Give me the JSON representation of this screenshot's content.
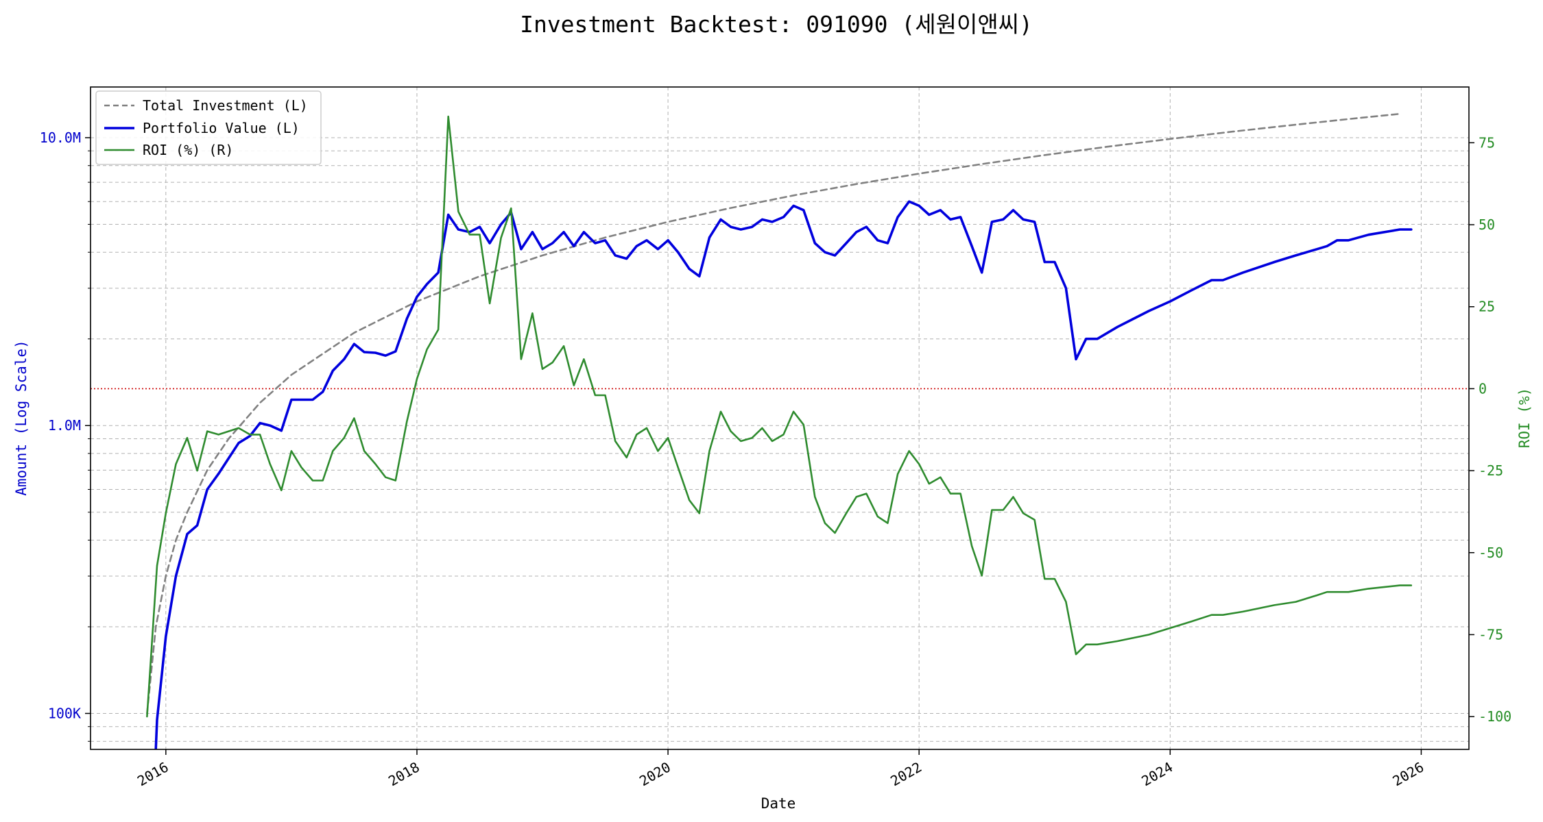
{
  "chart_data": {
    "type": "line",
    "title": "Investment Backtest: 091090 (세원이앤씨)",
    "xlabel": "Date",
    "ylabel_left": "Amount (Log Scale)",
    "ylabel_right": "ROI (%)",
    "x_ticks": [
      "2016",
      "2018",
      "2020",
      "2022",
      "2024",
      "2026"
    ],
    "y_left_ticks": [
      "100K",
      "1.0M",
      "10.0M"
    ],
    "y_left_tick_values": [
      100000,
      1000000,
      10000000
    ],
    "y_right_ticks": [
      "-100",
      "-75",
      "-50",
      "-25",
      "0",
      "25",
      "50",
      "75"
    ],
    "y_right_tick_values": [
      -100,
      -75,
      -50,
      -25,
      0,
      25,
      50,
      75
    ],
    "x_range": [
      2015.4,
      2026.38
    ],
    "y_left_range": [
      75000,
      15000000
    ],
    "y_right_range": [
      -110,
      92
    ],
    "y_left_scale": "log",
    "grid": true,
    "legend_position": "top-left",
    "colors": {
      "total_investment": "#808080",
      "portfolio_value": "#0000dd",
      "roi": "#2e8b2e",
      "zero_line": "#cc0000",
      "left_axis": "#0000cc",
      "right_axis": "#228b22"
    },
    "series": [
      {
        "name": "Total Investment (L)",
        "axis": "left",
        "style": "dashed",
        "x": [
          2015.85,
          2015.92,
          2016.0,
          2016.08,
          2016.17,
          2016.33,
          2016.5,
          2016.75,
          2017.0,
          2017.5,
          2018.0,
          2018.5,
          2019.0,
          2019.5,
          2020.0,
          2020.5,
          2021.0,
          2021.5,
          2022.0,
          2022.5,
          2023.0,
          2023.5,
          2024.0,
          2024.5,
          2025.0,
          2025.5,
          2025.83
        ],
        "values": [
          100000,
          200000,
          300000,
          400000,
          500000,
          700000,
          900000,
          1200000,
          1500000,
          2100000,
          2700000,
          3300000,
          3900000,
          4500000,
          5100000,
          5700000,
          6300000,
          6900000,
          7500000,
          8100000,
          8700000,
          9300000,
          9900000,
          10500000,
          11100000,
          11700000,
          12100000
        ]
      },
      {
        "name": "Portfolio Value (L)",
        "axis": "left",
        "style": "solid",
        "x": [
          2015.92,
          2015.93,
          2016.0,
          2016.08,
          2016.17,
          2016.25,
          2016.33,
          2016.42,
          2016.5,
          2016.58,
          2016.67,
          2016.75,
          2016.83,
          2016.92,
          2017.0,
          2017.08,
          2017.17,
          2017.25,
          2017.33,
          2017.42,
          2017.5,
          2017.58,
          2017.67,
          2017.75,
          2017.83,
          2017.92,
          2018.0,
          2018.08,
          2018.17,
          2018.25,
          2018.33,
          2018.42,
          2018.5,
          2018.58,
          2018.67,
          2018.75,
          2018.83,
          2018.92,
          2019.0,
          2019.08,
          2019.17,
          2019.25,
          2019.33,
          2019.42,
          2019.5,
          2019.58,
          2019.67,
          2019.75,
          2019.83,
          2019.92,
          2020.0,
          2020.08,
          2020.17,
          2020.25,
          2020.33,
          2020.42,
          2020.5,
          2020.58,
          2020.67,
          2020.75,
          2020.83,
          2020.92,
          2021.0,
          2021.08,
          2021.17,
          2021.25,
          2021.33,
          2021.42,
          2021.5,
          2021.58,
          2021.67,
          2021.75,
          2021.83,
          2021.92,
          2022.0,
          2022.08,
          2022.17,
          2022.25,
          2022.33,
          2022.42,
          2022.5,
          2022.58,
          2022.67,
          2022.75,
          2022.83,
          2022.92,
          2023.0,
          2023.08,
          2023.17,
          2023.25,
          2023.33,
          2023.42,
          2023.58,
          2023.83,
          2024.0,
          2024.17,
          2024.33,
          2024.42,
          2024.58,
          2024.83,
          2025.0,
          2025.17,
          2025.25,
          2025.33,
          2025.42,
          2025.58,
          2025.83,
          2025.92
        ],
        "values": [
          75000,
          95000,
          185000,
          300000,
          420000,
          450000,
          600000,
          680000,
          770000,
          870000,
          920000,
          1020000,
          1000000,
          960000,
          1230000,
          1230000,
          1230000,
          1310000,
          1550000,
          1700000,
          1920000,
          1800000,
          1790000,
          1750000,
          1810000,
          2350000,
          2800000,
          3100000,
          3400000,
          5400000,
          4800000,
          4700000,
          4900000,
          4300000,
          5000000,
          5500000,
          4100000,
          4700000,
          4100000,
          4300000,
          4700000,
          4200000,
          4700000,
          4300000,
          4400000,
          3900000,
          3800000,
          4200000,
          4400000,
          4100000,
          4400000,
          4000000,
          3500000,
          3300000,
          4500000,
          5200000,
          4900000,
          4800000,
          4900000,
          5200000,
          5100000,
          5300000,
          5800000,
          5600000,
          4300000,
          4000000,
          3900000,
          4300000,
          4700000,
          4900000,
          4400000,
          4300000,
          5300000,
          6000000,
          5800000,
          5400000,
          5600000,
          5200000,
          5300000,
          4200000,
          3400000,
          5100000,
          5200000,
          5600000,
          5200000,
          5100000,
          3700000,
          3700000,
          3000000,
          1700000,
          2000000,
          2000000,
          2200000,
          2500000,
          2700000,
          2950000,
          3200000,
          3200000,
          3400000,
          3700000,
          3900000,
          4100000,
          4200000,
          4400000,
          4400000,
          4600000,
          4800000,
          4800000
        ]
      },
      {
        "name": "ROI (%) (R)",
        "axis": "right",
        "style": "solid",
        "x": [
          2015.85,
          2015.93,
          2016.0,
          2016.08,
          2016.17,
          2016.25,
          2016.33,
          2016.42,
          2016.5,
          2016.58,
          2016.67,
          2016.75,
          2016.83,
          2016.92,
          2017.0,
          2017.08,
          2017.17,
          2017.25,
          2017.33,
          2017.42,
          2017.5,
          2017.58,
          2017.67,
          2017.75,
          2017.83,
          2017.92,
          2018.0,
          2018.08,
          2018.17,
          2018.25,
          2018.33,
          2018.42,
          2018.5,
          2018.58,
          2018.67,
          2018.75,
          2018.83,
          2018.92,
          2019.0,
          2019.08,
          2019.17,
          2019.25,
          2019.33,
          2019.42,
          2019.5,
          2019.58,
          2019.67,
          2019.75,
          2019.83,
          2019.92,
          2020.0,
          2020.08,
          2020.17,
          2020.25,
          2020.33,
          2020.42,
          2020.5,
          2020.58,
          2020.67,
          2020.75,
          2020.83,
          2020.92,
          2021.0,
          2021.08,
          2021.17,
          2021.25,
          2021.33,
          2021.42,
          2021.5,
          2021.58,
          2021.67,
          2021.75,
          2021.83,
          2021.92,
          2022.0,
          2022.08,
          2022.17,
          2022.25,
          2022.33,
          2022.42,
          2022.5,
          2022.58,
          2022.67,
          2022.75,
          2022.83,
          2022.92,
          2023.0,
          2023.08,
          2023.17,
          2023.25,
          2023.33,
          2023.42,
          2023.58,
          2023.83,
          2024.0,
          2024.17,
          2024.33,
          2024.42,
          2024.58,
          2024.83,
          2025.0,
          2025.17,
          2025.25,
          2025.33,
          2025.42,
          2025.58,
          2025.83,
          2025.92
        ],
        "values": [
          -100,
          -54,
          -38,
          -23,
          -15,
          -25,
          -13,
          -14,
          -13,
          -12,
          -14,
          -14,
          -23,
          -31,
          -19,
          -24,
          -28,
          -28,
          -19,
          -15,
          -9,
          -19,
          -23,
          -27,
          -28,
          -10,
          3,
          12,
          18,
          83,
          54,
          47,
          47,
          26,
          46,
          55,
          9,
          23,
          6,
          8,
          13,
          1,
          9,
          -2,
          -2,
          -16,
          -21,
          -14,
          -12,
          -19,
          -15,
          -24,
          -34,
          -38,
          -19,
          -7,
          -13,
          -16,
          -15,
          -12,
          -16,
          -14,
          -7,
          -11,
          -33,
          -41,
          -44,
          -38,
          -33,
          -32,
          -39,
          -41,
          -26,
          -19,
          -23,
          -29,
          -27,
          -32,
          -32,
          -48,
          -57,
          -37,
          -37,
          -33,
          -38,
          -40,
          -58,
          -58,
          -65,
          -81,
          -78,
          -78,
          -77,
          -75,
          -73,
          -71,
          -69,
          -69,
          -68,
          -66,
          -65,
          -63,
          -62,
          -62,
          -62,
          -61,
          -60,
          -60
        ]
      }
    ]
  }
}
